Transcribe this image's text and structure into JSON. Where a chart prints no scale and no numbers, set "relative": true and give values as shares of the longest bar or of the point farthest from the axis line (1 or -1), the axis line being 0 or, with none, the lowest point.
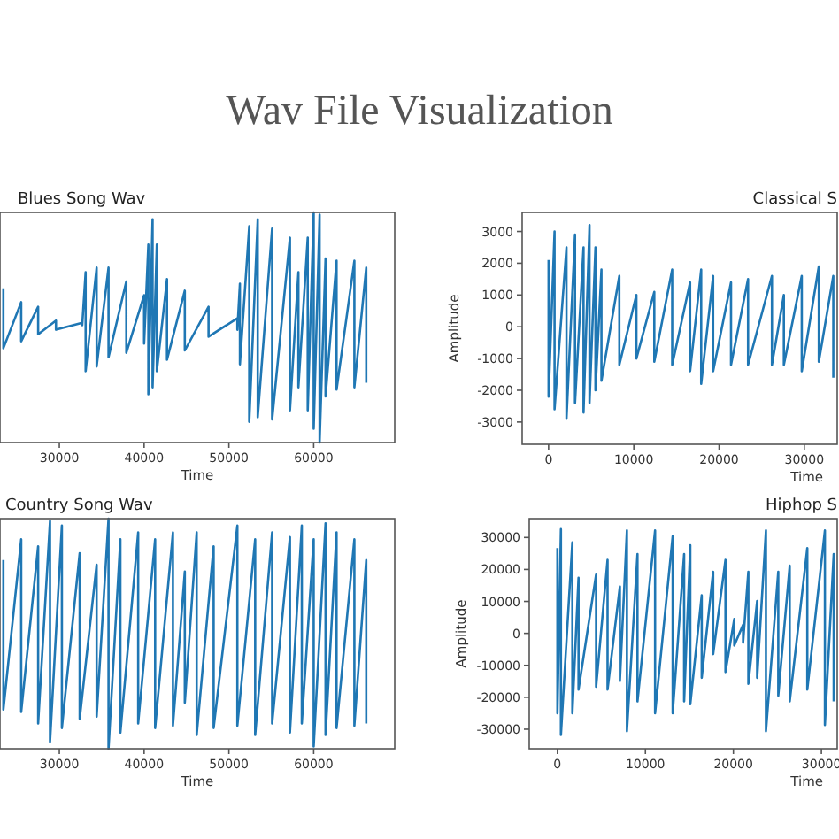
{
  "chart_data": [
    {
      "type": "other",
      "title": "Wav File Visualization"
    },
    {
      "type": "line",
      "title": "Blues Song Wav",
      "xlabel": "Time",
      "relative": true,
      "tick_labels": "x",
      "xlim": [
        23000,
        69560
      ],
      "xticks": [
        30000,
        40000,
        50000,
        60000
      ],
      "color": "#1f77b4",
      "x": [
        23400,
        23400,
        25500,
        25500,
        27500,
        27500,
        29600,
        29600,
        32700,
        32700,
        33100,
        33100,
        34400,
        34400,
        35800,
        35800,
        37900,
        37900,
        40000,
        40000,
        40500,
        40500,
        41000,
        41000,
        41500,
        41500,
        42700,
        42700,
        44800,
        44800,
        47600,
        47600,
        51000,
        51000,
        51300,
        51300,
        52400,
        52400,
        53400,
        53400,
        55100,
        55100,
        57200,
        57200,
        58200,
        58200,
        59300,
        59300,
        60000,
        60000,
        60700,
        60700,
        61400,
        61400,
        62700,
        62700,
        64800,
        64800,
        66200,
        66200
      ],
      "values": [
        0.67,
        0.41,
        0.61,
        0.44,
        0.59,
        0.47,
        0.53,
        0.49,
        0.52,
        0.51,
        0.74,
        0.31,
        0.76,
        0.33,
        0.76,
        0.37,
        0.7,
        0.39,
        0.64,
        0.43,
        0.86,
        0.21,
        0.97,
        0.24,
        0.86,
        0.31,
        0.71,
        0.36,
        0.66,
        0.4,
        0.59,
        0.46,
        0.54,
        0.49,
        0.69,
        0.34,
        0.94,
        0.09,
        0.97,
        0.11,
        0.93,
        0.1,
        0.89,
        0.14,
        0.74,
        0.24,
        0.89,
        0.14,
        1.0,
        0.06,
        0.99,
        0.0,
        0.8,
        0.2,
        0.79,
        0.23,
        0.79,
        0.24,
        0.76,
        0.26
      ]
    },
    {
      "type": "line",
      "title": "Classical S",
      "xlabel": "Time",
      "ylabel": "Amplitude",
      "xlim": [
        -3100,
        33860
      ],
      "xticks": [
        0,
        10000,
        20000,
        30000
      ],
      "ylim": [
        -3700,
        3600
      ],
      "yticks": [
        -3000,
        -2000,
        -1000,
        0,
        1000,
        2000,
        3000
      ],
      "color": "#1f77b4",
      "x": [
        0,
        0,
        700,
        700,
        2100,
        2100,
        3100,
        3100,
        4100,
        4100,
        4800,
        4800,
        5500,
        5500,
        6200,
        6200,
        8300,
        8300,
        10300,
        10300,
        12400,
        12400,
        14500,
        14500,
        16600,
        16600,
        17900,
        17900,
        19300,
        19300,
        21400,
        21400,
        23400,
        23400,
        26200,
        26200,
        27600,
        27600,
        29700,
        29700,
        31700,
        31700,
        33400,
        33400
      ],
      "values": [
        2100,
        -2200,
        3000,
        -2600,
        2500,
        -2900,
        2900,
        -2400,
        2500,
        -2700,
        3200,
        -2400,
        2500,
        -2000,
        1800,
        -1700,
        1600,
        -1200,
        1000,
        -1000,
        1100,
        -1100,
        1800,
        -1200,
        1400,
        -1400,
        1800,
        -1800,
        1600,
        -1400,
        1400,
        -1200,
        1500,
        -1200,
        1600,
        -1200,
        1000,
        -1200,
        1600,
        -1400,
        1900,
        -1100,
        1600,
        -1600
      ]
    },
    {
      "type": "line",
      "title": "Country Song Wav",
      "xlabel": "Time",
      "relative": true,
      "tick_labels": "x",
      "xlim": [
        23000,
        69560
      ],
      "xticks": [
        30000,
        40000,
        50000,
        60000
      ],
      "color": "#1f77b4",
      "x": [
        23400,
        23400,
        25500,
        25500,
        27500,
        27500,
        28900,
        28900,
        30300,
        30300,
        32400,
        32400,
        34400,
        34400,
        35800,
        35800,
        37200,
        37200,
        39300,
        39300,
        41300,
        41300,
        43400,
        43400,
        44800,
        44800,
        46200,
        46200,
        48200,
        48200,
        51000,
        51000,
        53100,
        53100,
        55100,
        55100,
        57200,
        57200,
        58600,
        58600,
        60000,
        60000,
        61400,
        61400,
        62700,
        62700,
        64800,
        64800,
        66200,
        66200
      ],
      "values": [
        0.82,
        0.17,
        0.91,
        0.16,
        0.88,
        0.11,
        0.99,
        0.03,
        0.97,
        0.09,
        0.85,
        0.13,
        0.8,
        0.14,
        1.0,
        0.0,
        0.91,
        0.07,
        0.94,
        0.11,
        0.91,
        0.09,
        0.94,
        0.1,
        0.77,
        0.2,
        0.94,
        0.06,
        0.88,
        0.09,
        0.97,
        0.1,
        0.91,
        0.06,
        0.94,
        0.11,
        0.92,
        0.07,
        0.97,
        0.11,
        0.91,
        0.01,
        0.98,
        0.06,
        0.94,
        0.09,
        0.91,
        0.1,
        0.82,
        0.11
      ]
    },
    {
      "type": "line",
      "title": "Hiphop S",
      "xlabel": "Time",
      "ylabel": "Amplitude",
      "xlim": [
        -3200,
        31800
      ],
      "xticks": [
        0,
        10000,
        20000,
        30000
      ],
      "ylim": [
        -36100,
        35900
      ],
      "yticks": [
        -30000,
        -20000,
        -10000,
        0,
        10000,
        20000,
        30000
      ],
      "color": "#1f77b4",
      "x": [
        0,
        0,
        400,
        400,
        1700,
        1700,
        2400,
        2400,
        4400,
        4400,
        5700,
        5700,
        7100,
        7100,
        7900,
        7900,
        9100,
        9100,
        11100,
        11100,
        13100,
        13100,
        14400,
        14400,
        15100,
        15100,
        16400,
        16400,
        17700,
        17700,
        19100,
        19100,
        20100,
        20100,
        21100,
        21100,
        21700,
        21700,
        22700,
        22700,
        23700,
        23700,
        25100,
        25100,
        26400,
        26400,
        28400,
        28400,
        30400,
        30400,
        31400,
        31400
      ],
      "values": [
        26700,
        -25000,
        32600,
        -31800,
        28500,
        -25000,
        17400,
        -17600,
        18400,
        -16700,
        23000,
        -17600,
        14700,
        -14900,
        32200,
        -30600,
        24800,
        -21300,
        32200,
        -25000,
        30400,
        -25000,
        24800,
        -21300,
        27600,
        -22200,
        11900,
        -13900,
        19300,
        -6500,
        23000,
        -12100,
        4500,
        -3800,
        2700,
        -2900,
        19300,
        -15800,
        10100,
        -13900,
        32200,
        -30600,
        19300,
        -19500,
        21200,
        -21300,
        26700,
        -17600,
        32200,
        -28700,
        24800,
        -21300
      ]
    }
  ]
}
